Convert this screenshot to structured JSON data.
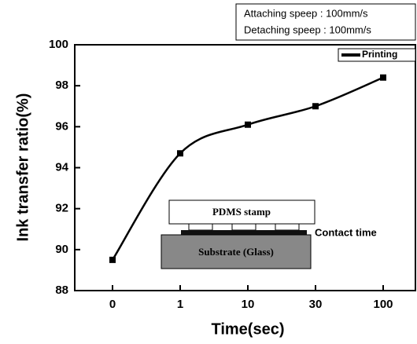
{
  "chart_data": {
    "type": "line",
    "x_label": "Time(sec)",
    "y_label": "Ink transfer ratio(%)",
    "categories": [
      "0",
      "1",
      "10",
      "30",
      "100"
    ],
    "series": [
      {
        "name": "Printing",
        "color": "#000000",
        "values": [
          89.5,
          94.7,
          96.1,
          97.0,
          98.4
        ]
      }
    ],
    "ylim": [
      88,
      100
    ],
    "yticks": [
      88,
      90,
      92,
      94,
      96,
      98,
      100
    ],
    "annotations": [
      "Attaching speep : 100mm/s",
      "Detaching speep : 100mm/s"
    ],
    "inset": {
      "stamp": "PDMS stamp",
      "substrate": "Substrate (Glass)",
      "label": "Contact time"
    }
  }
}
